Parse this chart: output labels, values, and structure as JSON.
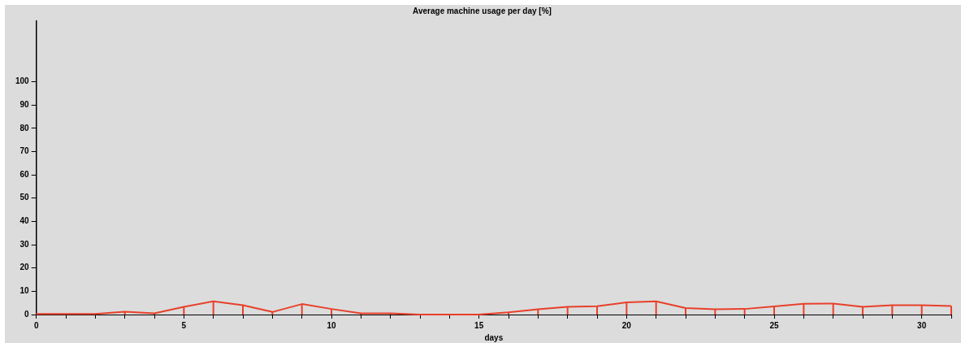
{
  "chart_data": {
    "type": "line",
    "title": "Average machine usage per day [%]",
    "xlabel": "days",
    "x": [
      0,
      1,
      2,
      3,
      4,
      5,
      6,
      7,
      8,
      9,
      10,
      11,
      12,
      13,
      14,
      15,
      16,
      17,
      18,
      19,
      20,
      21,
      22,
      23,
      24,
      25,
      26,
      27,
      28,
      29,
      30,
      31
    ],
    "series": [
      {
        "color": "#e8402a",
        "values": [
          0.3,
          0.3,
          0.3,
          1.2,
          0.5,
          3.3,
          5.7,
          4,
          1.1,
          4.5,
          2.4,
          0.5,
          0.5,
          0,
          0,
          0,
          1,
          2.3,
          3.3,
          3.6,
          5.2,
          5.7,
          2.8,
          2.3,
          2.4,
          3.5,
          4.6,
          4.7,
          3.3,
          4,
          4,
          3.7
        ]
      }
    ],
    "xlim": [
      0,
      31
    ],
    "xticks": [
      0,
      {
        "value": 1,
        "label": null
      },
      {
        "value": 2,
        "label": null
      },
      {
        "value": 3,
        "label": null
      },
      {
        "value": 4,
        "label": null
      },
      5,
      {
        "value": 6,
        "label": null
      },
      {
        "value": 7,
        "label": null
      },
      {
        "value": 8,
        "label": null
      },
      {
        "value": 9,
        "label": null
      },
      10,
      {
        "value": 11,
        "label": null
      },
      {
        "value": 12,
        "label": null
      },
      {
        "value": 13,
        "label": null
      },
      {
        "value": 14,
        "label": null
      },
      15,
      {
        "value": 16,
        "label": null
      },
      {
        "value": 17,
        "label": null
      },
      {
        "value": 18,
        "label": null
      },
      {
        "value": 19,
        "label": null
      },
      20,
      {
        "value": 21,
        "label": null
      },
      {
        "value": 22,
        "label": null
      },
      {
        "value": 23,
        "label": null
      },
      {
        "value": 24,
        "label": null
      },
      25,
      {
        "value": 26,
        "label": null
      },
      {
        "value": 27,
        "label": null
      },
      {
        "value": 28,
        "label": null
      },
      {
        "value": 29,
        "label": null
      },
      30,
      {
        "value": 31,
        "label": null
      }
    ],
    "ylim": [
      0,
      126
    ],
    "yticks": [
      0,
      10,
      20,
      30,
      40,
      50,
      60,
      70,
      80,
      90,
      100
    ],
    "grid": false,
    "legend": false,
    "marker": "none",
    "line_style": "solid"
  }
}
